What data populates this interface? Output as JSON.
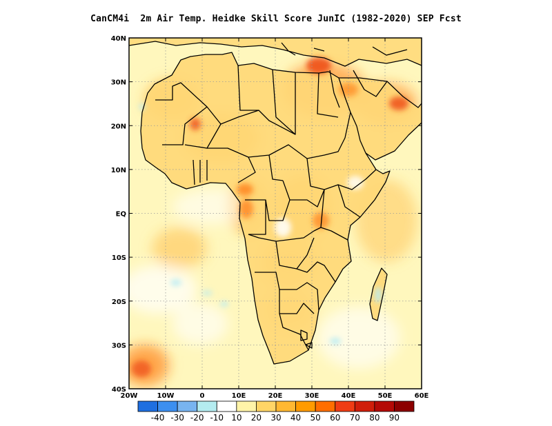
{
  "title": "CanCM4i  2m Air Temp. Heidke Skill Score JunIC (1982-2020) SEP Fcst",
  "map": {
    "projection": "lat-lon",
    "lon_range": [
      -20,
      60
    ],
    "lat_range": [
      -40,
      40
    ],
    "lon_ticks": [
      {
        "value": -20,
        "label": "20W"
      },
      {
        "value": -10,
        "label": "10W"
      },
      {
        "value": 0,
        "label": "0"
      },
      {
        "value": 10,
        "label": "10E"
      },
      {
        "value": 20,
        "label": "20E"
      },
      {
        "value": 30,
        "label": "30E"
      },
      {
        "value": 40,
        "label": "40E"
      },
      {
        "value": 50,
        "label": "50E"
      },
      {
        "value": 60,
        "label": "60E"
      }
    ],
    "lat_ticks": [
      {
        "value": 40,
        "label": "40N"
      },
      {
        "value": 30,
        "label": "30N"
      },
      {
        "value": 20,
        "label": "20N"
      },
      {
        "value": 10,
        "label": "10N"
      },
      {
        "value": 0,
        "label": "EQ"
      },
      {
        "value": -10,
        "label": "10S"
      },
      {
        "value": -20,
        "label": "20S"
      },
      {
        "value": -30,
        "label": "30S"
      },
      {
        "value": -40,
        "label": "40S"
      }
    ],
    "grid": "dotted"
  },
  "colorbar": {
    "labels": [
      "-40",
      "-30",
      "-20",
      "-10",
      "10",
      "20",
      "30",
      "40",
      "50",
      "60",
      "70",
      "80",
      "90"
    ],
    "colors": [
      "#1e6fe0",
      "#3c8ff0",
      "#78b4f0",
      "#b4ecf0",
      "#ffffff",
      "#fff4a8",
      "#ffd566",
      "#ffb832",
      "#ff9b00",
      "#ff6e00",
      "#f03c14",
      "#d01e0a",
      "#b40a06",
      "#8c0000"
    ]
  },
  "palette": {
    "ocean_base": "#fff7bd",
    "land_base": "#ffd877",
    "warm": "#ffb437",
    "hot": "#ff8520",
    "very_hot": "#ee4f19",
    "cool": "#b9ecf3",
    "white": "#ffffff"
  }
}
